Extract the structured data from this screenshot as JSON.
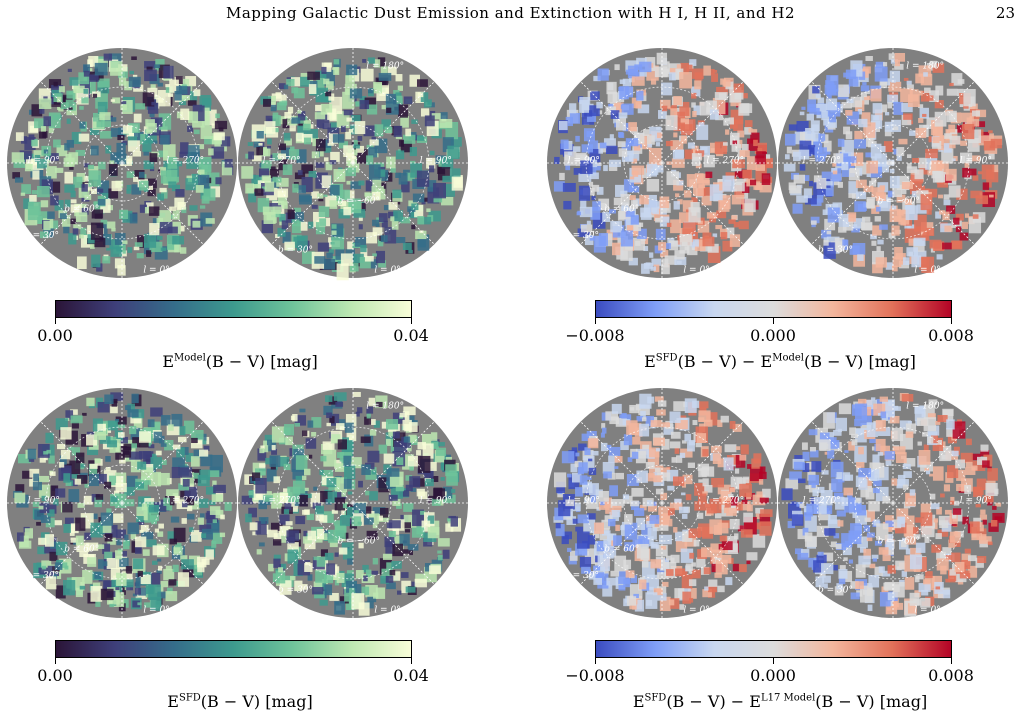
{
  "header": {
    "running_title": "Mapping Galactic Dust Emission and Extinction with H I, H II, and H2",
    "page_number": "23"
  },
  "colors": {
    "map_background": "#808080",
    "seq_cmap": [
      "#2b1538",
      "#3e3f7a",
      "#356d8a",
      "#3d9a8e",
      "#6fc39a",
      "#bde8b2",
      "#f8fdd8"
    ],
    "div_cmap": [
      "#3b4cc0",
      "#7f9ef7",
      "#c8d7f0",
      "#dcdcdc",
      "#f3b69d",
      "#e2725a",
      "#b40426"
    ]
  },
  "map_labels": {
    "l90": "l = 90°",
    "l270": "l = 270°",
    "l180": "l = 180°",
    "l0": "l = 0°",
    "b60n": "b = 60°",
    "b60s": "b = −60°",
    "b30": "b = 30°"
  },
  "panels": [
    {
      "id": "model",
      "cmap": "seq",
      "ticks": [
        "0.00",
        "0.04"
      ],
      "label_main": "E",
      "label_sup": "Model",
      "label_rest": "(B − V) [mag]"
    },
    {
      "id": "sfd-minus-model",
      "cmap": "div",
      "ticks": [
        "−0.008",
        "0.000",
        "0.008"
      ],
      "label_main": "E",
      "label_sup": "SFD",
      "label_rest": "(B − V) − E",
      "label_sup2": "Model",
      "label_rest2": "(B − V) [mag]"
    },
    {
      "id": "sfd",
      "cmap": "seq",
      "ticks": [
        "0.00",
        "0.04"
      ],
      "label_main": "E",
      "label_sup": "SFD",
      "label_rest": "(B − V) [mag]"
    },
    {
      "id": "sfd-minus-l17",
      "cmap": "div",
      "ticks": [
        "−0.008",
        "0.000",
        "0.008"
      ],
      "label_main": "E",
      "label_sup": "SFD",
      "label_rest": "(B − V) − E",
      "label_sup2": "L17 Model",
      "label_rest2": "(B − V) [mag]"
    }
  ]
}
